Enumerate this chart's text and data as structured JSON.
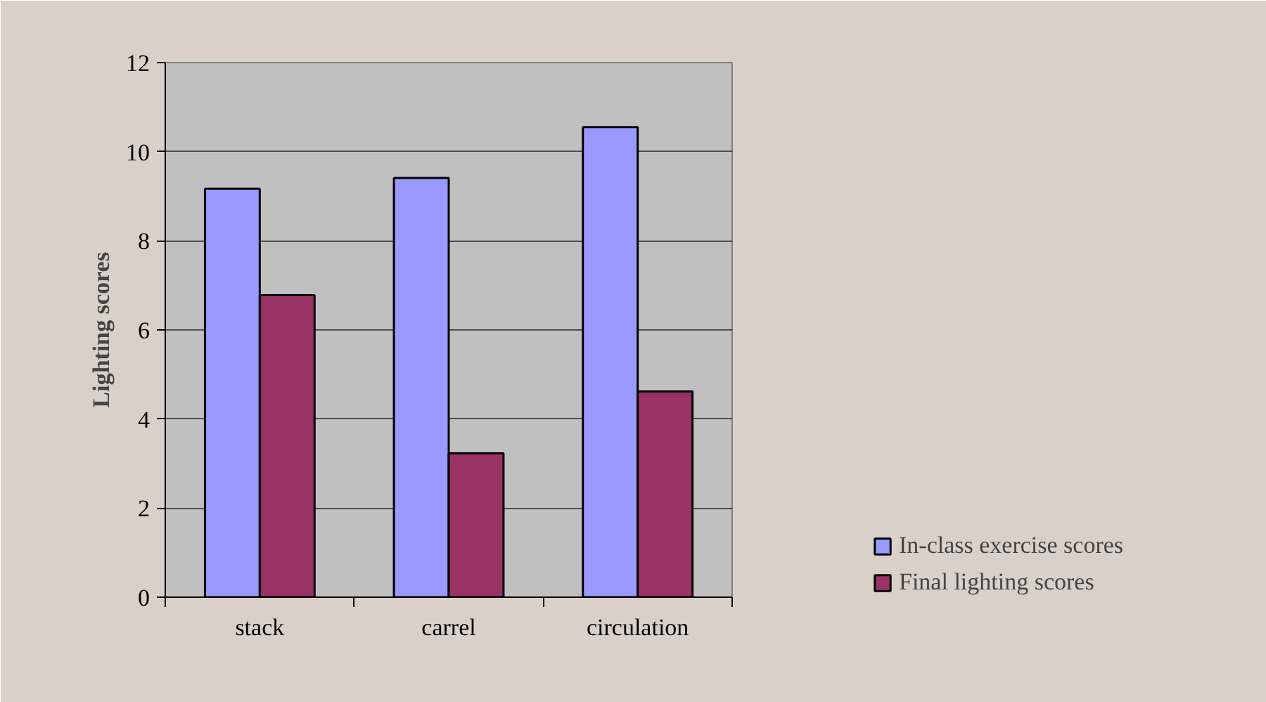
{
  "chart_data": {
    "type": "bar",
    "ylabel": "Lighting scores",
    "categories": [
      "stack",
      "carrel",
      "circulation"
    ],
    "series": [
      {
        "name": "In-class exercise scores",
        "color": "#9999ff",
        "values": [
          9.17,
          9.41,
          10.55
        ]
      },
      {
        "name": "Final lighting scores",
        "color": "#993366",
        "values": [
          6.78,
          3.23,
          4.62
        ]
      }
    ],
    "ylim": [
      0,
      12
    ],
    "yticks": [
      0,
      2,
      4,
      6,
      8,
      10,
      12
    ],
    "grid": "y",
    "legend": "right"
  }
}
